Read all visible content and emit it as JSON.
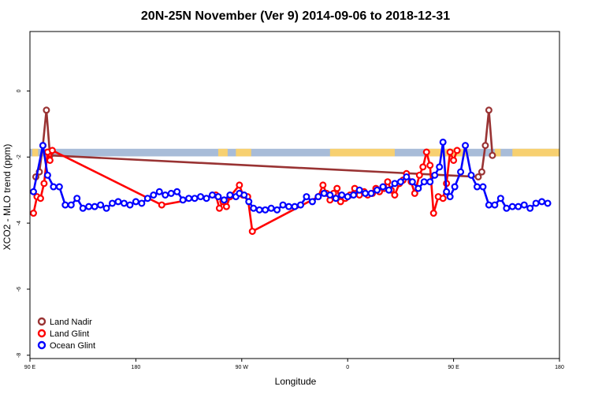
{
  "chart_data": {
    "type": "line",
    "title": "20N-25N November (Ver 9)   2014-09-06 to 2018-12-31",
    "xlabel": "Longitude",
    "ylabel": "XCO2 - MLO trend (ppm)",
    "x_ticks": [
      {
        "pos": 90,
        "label": "90 E"
      },
      {
        "pos": 180,
        "label": "180"
      },
      {
        "pos": 270,
        "label": "90 W"
      },
      {
        "pos": 360,
        "label": "0"
      },
      {
        "pos": 450,
        "label": "90 E"
      },
      {
        "pos": 540,
        "label": "180"
      }
    ],
    "y_ticks": [
      0,
      -2,
      -4,
      -6,
      -8
    ],
    "xlim": [
      90,
      540
    ],
    "ylim": [
      -8.1,
      1.8
    ],
    "land_band": {
      "y_top": -1.75,
      "y_bottom": -1.98,
      "ocean_color": "#a8bcd8",
      "land_color": "#f7d070",
      "land_ranges": [
        [
          92,
          97
        ],
        [
          250,
          258
        ],
        [
          265,
          278
        ],
        [
          345,
          400
        ],
        [
          428,
          462
        ],
        [
          485,
          490
        ],
        [
          500,
          540
        ]
      ]
    },
    "series": [
      {
        "name": "Land Nadir",
        "color": "#993333",
        "points": [
          [
            95,
            -2.6
          ],
          [
            98,
            -2.45
          ],
          [
            101,
            -1.65
          ],
          [
            104,
            -0.58
          ],
          [
            107,
            -1.95
          ],
          [
            471,
            -2.6
          ],
          [
            474,
            -2.45
          ],
          [
            477,
            -1.65
          ],
          [
            480,
            -0.58
          ],
          [
            483,
            -1.95
          ]
        ]
      },
      {
        "name": "Land Glint",
        "color": "#ff0000",
        "points": [
          [
            93,
            -3.7
          ],
          [
            96,
            -3.2
          ],
          [
            99,
            -3.25
          ],
          [
            102,
            -2.8
          ],
          [
            105,
            -1.85
          ],
          [
            107,
            -2.1
          ],
          [
            109,
            -1.8
          ],
          [
            202,
            -3.45
          ],
          [
            248,
            -3.15
          ],
          [
            251,
            -3.55
          ],
          [
            254,
            -3.35
          ],
          [
            257,
            -3.5
          ],
          [
            260,
            -3.2
          ],
          [
            268,
            -2.85
          ],
          [
            271,
            -3.15
          ],
          [
            275,
            -3.2
          ],
          [
            279,
            -4.25
          ],
          [
            335,
            -3.2
          ],
          [
            339,
            -2.85
          ],
          [
            342,
            -3.1
          ],
          [
            345,
            -3.3
          ],
          [
            348,
            -3.1
          ],
          [
            351,
            -2.95
          ],
          [
            354,
            -3.35
          ],
          [
            358,
            -3.25
          ],
          [
            362,
            -3.15
          ],
          [
            366,
            -2.95
          ],
          [
            370,
            -3.15
          ],
          [
            374,
            -3.05
          ],
          [
            377,
            -3.15
          ],
          [
            381,
            -3.1
          ],
          [
            384,
            -2.95
          ],
          [
            387,
            -3.05
          ],
          [
            391,
            -2.95
          ],
          [
            394,
            -2.75
          ],
          [
            397,
            -3.0
          ],
          [
            400,
            -3.15
          ],
          [
            404,
            -2.8
          ],
          [
            407,
            -2.7
          ],
          [
            410,
            -2.5
          ],
          [
            414,
            -2.75
          ],
          [
            417,
            -3.1
          ],
          [
            421,
            -2.55
          ],
          [
            424,
            -2.3
          ],
          [
            427,
            -1.85
          ],
          [
            430,
            -2.25
          ],
          [
            433,
            -3.7
          ],
          [
            437,
            -3.2
          ],
          [
            441,
            -3.25
          ],
          [
            444,
            -2.8
          ],
          [
            447,
            -1.85
          ],
          [
            450,
            -2.1
          ],
          [
            453,
            -1.8
          ]
        ]
      },
      {
        "name": "Ocean Glint",
        "color": "#0000ff",
        "points": [
          [
            93,
            -3.05
          ],
          [
            101,
            -1.65
          ],
          [
            105,
            -2.55
          ],
          [
            110,
            -2.9
          ],
          [
            115,
            -2.9
          ],
          [
            120,
            -3.45
          ],
          [
            125,
            -3.45
          ],
          [
            130,
            -3.25
          ],
          [
            135,
            -3.55
          ],
          [
            140,
            -3.5
          ],
          [
            145,
            -3.5
          ],
          [
            150,
            -3.45
          ],
          [
            155,
            -3.55
          ],
          [
            160,
            -3.4
          ],
          [
            165,
            -3.35
          ],
          [
            170,
            -3.4
          ],
          [
            175,
            -3.45
          ],
          [
            180,
            -3.35
          ],
          [
            185,
            -3.4
          ],
          [
            190,
            -3.25
          ],
          [
            195,
            -3.15
          ],
          [
            200,
            -3.05
          ],
          [
            205,
            -3.15
          ],
          [
            210,
            -3.1
          ],
          [
            215,
            -3.05
          ],
          [
            220,
            -3.3
          ],
          [
            225,
            -3.25
          ],
          [
            230,
            -3.25
          ],
          [
            235,
            -3.2
          ],
          [
            240,
            -3.25
          ],
          [
            245,
            -3.15
          ],
          [
            250,
            -3.2
          ],
          [
            255,
            -3.3
          ],
          [
            260,
            -3.15
          ],
          [
            265,
            -3.2
          ],
          [
            268,
            -3.1
          ],
          [
            272,
            -3.15
          ],
          [
            276,
            -3.35
          ],
          [
            280,
            -3.55
          ],
          [
            285,
            -3.6
          ],
          [
            290,
            -3.6
          ],
          [
            295,
            -3.55
          ],
          [
            300,
            -3.6
          ],
          [
            305,
            -3.45
          ],
          [
            310,
            -3.5
          ],
          [
            315,
            -3.5
          ],
          [
            320,
            -3.45
          ],
          [
            325,
            -3.2
          ],
          [
            330,
            -3.35
          ],
          [
            335,
            -3.2
          ],
          [
            340,
            -3.1
          ],
          [
            345,
            -3.15
          ],
          [
            350,
            -3.25
          ],
          [
            355,
            -3.15
          ],
          [
            360,
            -3.2
          ],
          [
            365,
            -3.15
          ],
          [
            370,
            -3.0
          ],
          [
            375,
            -3.1
          ],
          [
            380,
            -3.1
          ],
          [
            385,
            -3.0
          ],
          [
            390,
            -2.9
          ],
          [
            395,
            -3.0
          ],
          [
            400,
            -2.8
          ],
          [
            405,
            -2.75
          ],
          [
            410,
            -2.6
          ],
          [
            415,
            -2.75
          ],
          [
            420,
            -2.95
          ],
          [
            425,
            -2.75
          ],
          [
            430,
            -2.75
          ],
          [
            434,
            -2.55
          ],
          [
            438,
            -2.3
          ],
          [
            441,
            -1.55
          ],
          [
            444,
            -3.05
          ],
          [
            447,
            -3.2
          ],
          [
            451,
            -2.9
          ],
          [
            456,
            -2.45
          ],
          [
            460,
            -1.65
          ],
          [
            465,
            -2.55
          ],
          [
            470,
            -2.9
          ],
          [
            475,
            -2.9
          ],
          [
            480,
            -3.45
          ],
          [
            485,
            -3.45
          ],
          [
            490,
            -3.25
          ],
          [
            495,
            -3.55
          ],
          [
            500,
            -3.5
          ],
          [
            505,
            -3.5
          ],
          [
            510,
            -3.45
          ],
          [
            515,
            -3.55
          ],
          [
            520,
            -3.4
          ],
          [
            525,
            -3.35
          ],
          [
            530,
            -3.4
          ]
        ]
      }
    ],
    "legend": {
      "position": "bottom-left",
      "entries": [
        {
          "label": "Land Nadir",
          "color": "#993333"
        },
        {
          "label": "Land Glint",
          "color": "#ff0000"
        },
        {
          "label": "Ocean Glint",
          "color": "#0000ff"
        }
      ]
    }
  }
}
